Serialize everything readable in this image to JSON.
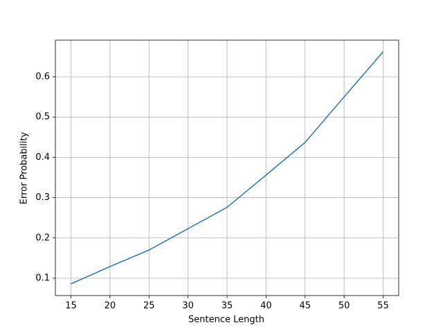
{
  "chart_data": {
    "type": "line",
    "x_label": "Sentence Length",
    "y_label": "Error Probability",
    "x": [
      15,
      20,
      25,
      30,
      35,
      40,
      45,
      50,
      55
    ],
    "series": [
      {
        "color": "#1f77b4",
        "values": [
          0.086,
          0.129,
          0.17,
          0.223,
          0.276,
          0.356,
          0.437,
          0.55,
          0.662
        ]
      }
    ],
    "xlim": [
      13,
      57
    ],
    "xticks": [
      15,
      20,
      25,
      30,
      35,
      40,
      45,
      50,
      55
    ],
    "ylim": [
      0.057,
      0.691
    ],
    "yticks": [
      0.1,
      0.2,
      0.3,
      0.4,
      0.5,
      0.6
    ],
    "grid": true
  }
}
